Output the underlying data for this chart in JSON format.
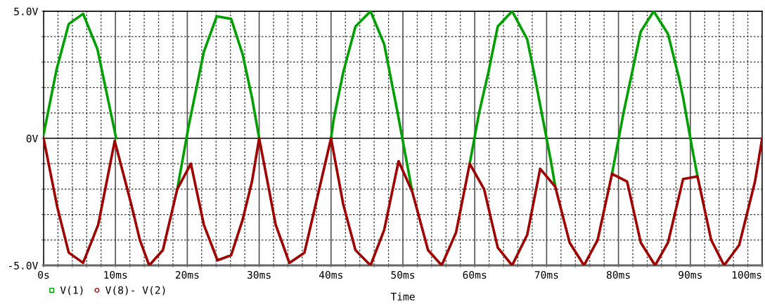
{
  "chart_data": {
    "type": "line",
    "xlabel": "Time",
    "legend": "bottom left",
    "grid": true,
    "line_style": "solid",
    "xlim": [
      0,
      100
    ],
    "ylim": [
      -5,
      5
    ],
    "xticks": [
      {
        "value": 0,
        "label": "0s"
      },
      {
        "value": 2,
        "label": null
      },
      {
        "value": 4,
        "label": null
      },
      {
        "value": 6,
        "label": null
      },
      {
        "value": 8,
        "label": null
      },
      {
        "value": 10,
        "label": "10ms"
      },
      {
        "value": 12,
        "label": null
      },
      {
        "value": 14,
        "label": null
      },
      {
        "value": 16,
        "label": null
      },
      {
        "value": 18,
        "label": null
      },
      {
        "value": 20,
        "label": "20ms"
      },
      {
        "value": 22,
        "label": null
      },
      {
        "value": 24,
        "label": null
      },
      {
        "value": 26,
        "label": null
      },
      {
        "value": 28,
        "label": null
      },
      {
        "value": 30,
        "label": "30ms"
      },
      {
        "value": 32,
        "label": null
      },
      {
        "value": 34,
        "label": null
      },
      {
        "value": 36,
        "label": null
      },
      {
        "value": 38,
        "label": null
      },
      {
        "value": 40,
        "label": "40ms"
      },
      {
        "value": 42,
        "label": null
      },
      {
        "value": 44,
        "label": null
      },
      {
        "value": 46,
        "label": null
      },
      {
        "value": 48,
        "label": null
      },
      {
        "value": 50,
        "label": "50ms"
      },
      {
        "value": 52,
        "label": null
      },
      {
        "value": 54,
        "label": null
      },
      {
        "value": 56,
        "label": null
      },
      {
        "value": 58,
        "label": null
      },
      {
        "value": 60,
        "label": "60ms"
      },
      {
        "value": 62,
        "label": null
      },
      {
        "value": 64,
        "label": null
      },
      {
        "value": 66,
        "label": null
      },
      {
        "value": 68,
        "label": null
      },
      {
        "value": 70,
        "label": "70ms"
      },
      {
        "value": 72,
        "label": null
      },
      {
        "value": 74,
        "label": null
      },
      {
        "value": 76,
        "label": null
      },
      {
        "value": 78,
        "label": null
      },
      {
        "value": 80,
        "label": "80ms"
      },
      {
        "value": 82,
        "label": null
      },
      {
        "value": 84,
        "label": null
      },
      {
        "value": 86,
        "label": null
      },
      {
        "value": 88,
        "label": null
      },
      {
        "value": 90,
        "label": "90ms"
      },
      {
        "value": 92,
        "label": null
      },
      {
        "value": 94,
        "label": null
      },
      {
        "value": 96,
        "label": null
      },
      {
        "value": 98,
        "label": null
      },
      {
        "value": 100,
        "label": "100ms"
      }
    ],
    "yticks": [
      {
        "value": -5,
        "label": "-5.0V"
      },
      {
        "value": -4,
        "label": null
      },
      {
        "value": -3,
        "label": null
      },
      {
        "value": -2,
        "label": null
      },
      {
        "value": -1,
        "label": null
      },
      {
        "value": 0,
        "label": "0V"
      },
      {
        "value": 1,
        "label": null
      },
      {
        "value": 2,
        "label": null
      },
      {
        "value": 3,
        "label": null
      },
      {
        "value": 4,
        "label": null
      },
      {
        "value": 5,
        "label": "5.0V"
      }
    ],
    "series": [
      {
        "name": "V(1)",
        "color": "#00a000",
        "x": [
          0,
          1.8,
          3.5,
          5.5,
          7.5,
          10.1,
          12.2,
          13.4,
          14.7,
          16.6,
          18.6,
          20.2,
          22.3,
          24.1,
          26.1,
          27.7,
          29.0,
          30.0,
          32.3,
          34.2,
          36.3,
          40.0,
          40.4,
          41.7,
          43.4,
          45.5,
          47.4,
          49.2,
          51.3,
          53.5,
          55.4,
          57.0,
          59.3,
          60.6,
          61.9,
          63.2,
          65.2,
          67.3,
          68.3,
          70.6,
          71.2,
          73.2,
          75.2,
          77.1,
          79.1,
          80.7,
          82.2,
          83.1,
          84.9,
          86.9,
          88.4,
          89.0,
          90.0,
          91.0
        ],
        "values": [
          0.15,
          2.7,
          4.5,
          4.9,
          3.5,
          0,
          null,
          null,
          null,
          null,
          -2.0,
          0.5,
          3.4,
          4.8,
          4.7,
          3.3,
          1.6,
          0,
          null,
          null,
          null,
          0,
          0.8,
          2.6,
          4.4,
          5.0,
          3.7,
          1.1,
          -2.1,
          null,
          null,
          null,
          -1.0,
          1.0,
          2.6,
          4.4,
          5.0,
          3.9,
          2.5,
          -0.9,
          -1.9,
          null,
          null,
          null,
          -1.4,
          1.0,
          3.0,
          4.2,
          5.0,
          4.1,
          2.4,
          1.6,
          0,
          -1.5
        ]
      },
      {
        "name": "V(8)- V(2)",
        "color": "#a00000",
        "x": [
          0,
          1.9,
          3.5,
          5.5,
          7.6,
          9.9,
          12.2,
          13.4,
          14.7,
          16.6,
          18.6,
          20.5,
          22.3,
          24.2,
          26.1,
          27.7,
          29.0,
          30.0,
          32.3,
          34.2,
          36.3,
          40.0,
          41.7,
          43.4,
          45.5,
          47.4,
          49.4,
          51.3,
          53.5,
          55.4,
          57.4,
          59.3,
          61.3,
          63.2,
          65.2,
          67.3,
          69.1,
          71.2,
          73.2,
          75.2,
          77.1,
          79.1,
          81.2,
          83.1,
          85.1,
          86.9,
          89.0,
          91.0,
          92.9,
          94.7,
          96.8,
          99.0,
          100
        ],
        "values": [
          0,
          -2.7,
          -4.5,
          -4.9,
          -3.4,
          -0.1,
          -2.6,
          -4.0,
          -5.0,
          -4.4,
          -2.0,
          -1.0,
          -3.4,
          -4.8,
          -4.6,
          -3.2,
          -1.7,
          0,
          -3.4,
          -4.9,
          -4.5,
          0,
          -2.6,
          -4.4,
          -5.0,
          -3.6,
          -0.9,
          -2.1,
          -4.4,
          -5.0,
          -3.7,
          -1.0,
          -2.0,
          -4.3,
          -5.0,
          -3.8,
          -1.2,
          -1.9,
          -4.1,
          -5.0,
          -4.0,
          -1.4,
          -1.7,
          -4.1,
          -5.0,
          -4.1,
          -1.6,
          -1.5,
          -4.0,
          -5.0,
          -4.2,
          -1.7,
          0
        ]
      }
    ]
  }
}
